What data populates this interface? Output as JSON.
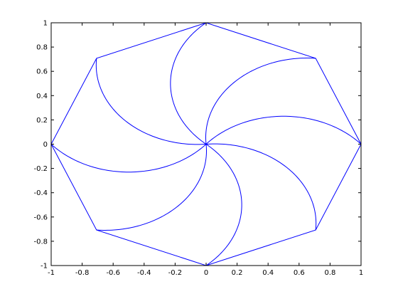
{
  "chart_data": {
    "type": "line",
    "title": "",
    "xlabel": "",
    "ylabel": "",
    "xlim": [
      -1,
      1
    ],
    "ylim": [
      -1,
      1
    ],
    "grid": false,
    "legend": "none",
    "x_ticks": [
      "-1",
      "-0.8",
      "-0.6",
      "-0.4",
      "-0.2",
      "0",
      "0.2",
      "0.4",
      "0.6",
      "0.8",
      "1"
    ],
    "y_ticks": [
      "1",
      "0.8",
      "0.6",
      "0.4",
      "0.2",
      "0",
      "-0.2",
      "-0.4",
      "-0.6",
      "-0.8",
      "-1"
    ],
    "line_color": "#0000ff",
    "octagon_vertices": [
      [
        1,
        0
      ],
      [
        0.7071,
        0.7071
      ],
      [
        0,
        1
      ],
      [
        -0.7071,
        0.7071
      ],
      [
        -1,
        0
      ],
      [
        -0.7071,
        -0.7071
      ],
      [
        0,
        -1
      ],
      [
        0.7071,
        -0.7071
      ]
    ],
    "spiral_arcs": [
      {
        "from": [
          0,
          0
        ],
        "to": [
          1,
          0
        ],
        "extreme": [
          0.5,
          0.23
        ]
      },
      {
        "from": [
          0,
          0
        ],
        "to": [
          0.7071,
          0.7071
        ],
        "extreme": [
          0.163,
          0.49
        ]
      },
      {
        "from": [
          0,
          0
        ],
        "to": [
          0,
          1
        ],
        "extreme": [
          -0.23,
          0.5
        ]
      },
      {
        "from": [
          0,
          0
        ],
        "to": [
          -0.7071,
          0.7071
        ],
        "extreme": [
          -0.49,
          0.163
        ]
      },
      {
        "from": [
          0,
          0
        ],
        "to": [
          -1,
          0
        ],
        "extreme": [
          -0.5,
          -0.23
        ]
      },
      {
        "from": [
          0,
          0
        ],
        "to": [
          -0.7071,
          -0.7071
        ],
        "extreme": [
          -0.163,
          -0.49
        ]
      },
      {
        "from": [
          0,
          0
        ],
        "to": [
          0,
          -1
        ],
        "extreme": [
          0.23,
          -0.5
        ]
      },
      {
        "from": [
          0,
          0
        ],
        "to": [
          0.7071,
          -0.7071
        ],
        "extreme": [
          0.49,
          -0.163
        ]
      }
    ]
  }
}
